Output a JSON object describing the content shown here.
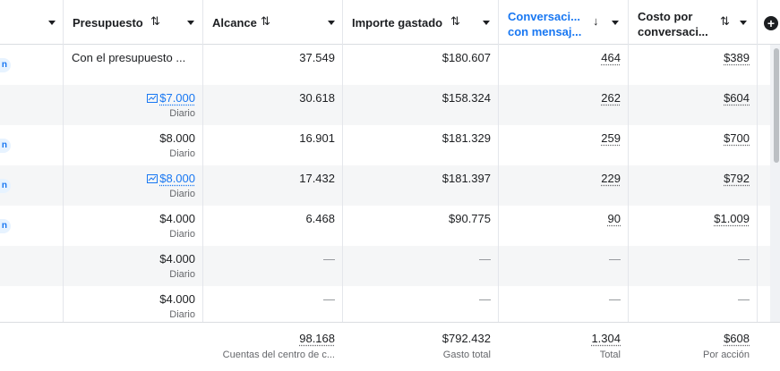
{
  "columns": {
    "presupuesto": "Presupuesto",
    "alcance": "Alcance",
    "importe": "Importe gastado",
    "conversaciones_l1": "Conversaci...",
    "conversaciones_l2": "con mensaj...",
    "costo_l1": "Costo por",
    "costo_l2": "conversaci..."
  },
  "icons": {
    "sort": "⇅",
    "sort_desc": "↓",
    "add": "+"
  },
  "rows": [
    {
      "status": "n",
      "budget": "Con el presupuesto ...",
      "budget_sub": "",
      "alcance": "37.549",
      "importe": "$180.607",
      "conv": "464",
      "costo": "$389"
    },
    {
      "status": "",
      "budget": "$7.000",
      "budget_sub": "Diario",
      "alcance": "30.618",
      "importe": "$158.324",
      "conv": "262",
      "costo": "$604"
    },
    {
      "status": "n",
      "budget": "$8.000",
      "budget_sub": "Diario",
      "alcance": "16.901",
      "importe": "$181.329",
      "conv": "259",
      "costo": "$700"
    },
    {
      "status": "n",
      "budget": "$8.000",
      "budget_sub": "Diario",
      "alcance": "17.432",
      "importe": "$181.397",
      "conv": "229",
      "costo": "$792"
    },
    {
      "status": "n",
      "budget": "$4.000",
      "budget_sub": "Diario",
      "alcance": "6.468",
      "importe": "$90.775",
      "conv": "90",
      "costo": "$1.009"
    },
    {
      "status": "",
      "budget": "$4.000",
      "budget_sub": "Diario",
      "alcance": "—",
      "importe": "—",
      "conv": "—",
      "costo": "—"
    },
    {
      "status": "",
      "budget": "$4.000",
      "budget_sub": "Diario",
      "alcance": "—",
      "importe": "—",
      "conv": "—",
      "costo": "—"
    }
  ],
  "totals": {
    "alcance": "98.168",
    "alcance_sub": "Cuentas del centro de c...",
    "importe": "$792.432",
    "importe_sub": "Gasto total",
    "conv": "1.304",
    "conv_sub": "Total",
    "costo": "$608",
    "costo_sub": "Por acción"
  },
  "colors": {
    "accent": "#1877f2",
    "row_shade": "#f5f6f7",
    "muted": "#65676b"
  }
}
